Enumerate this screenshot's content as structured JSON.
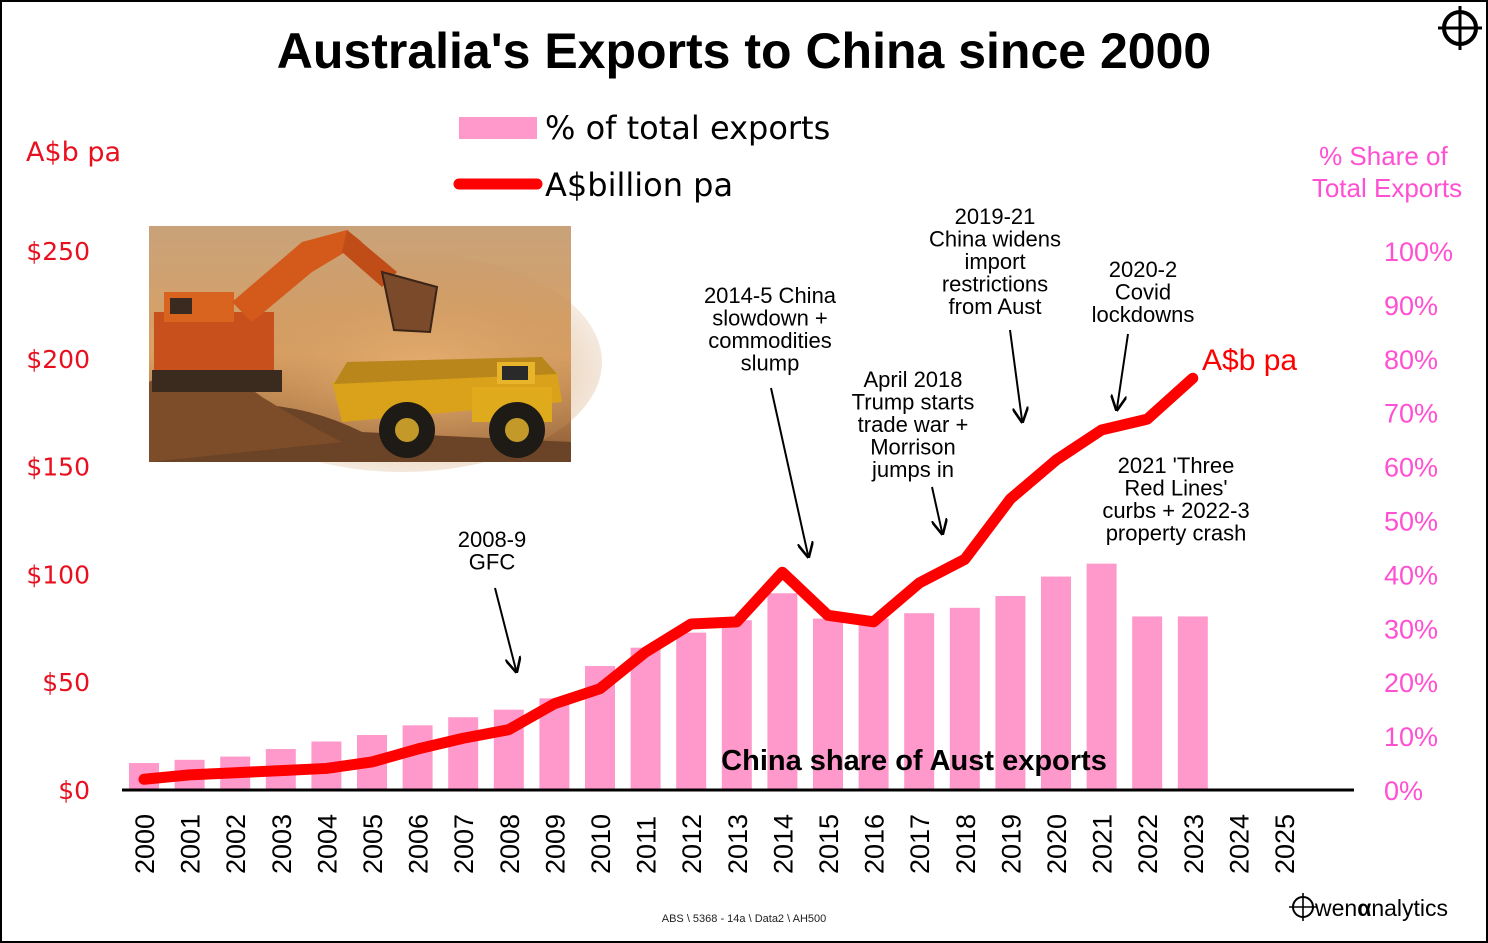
{
  "chart_data": {
    "type": "bar+line",
    "title": "Australia's Exports to China since 2000",
    "categories": [
      "2000",
      "2001",
      "2002",
      "2003",
      "2004",
      "2005",
      "2006",
      "2007",
      "2008",
      "2009",
      "2010",
      "2011",
      "2012",
      "2013",
      "2014",
      "2015",
      "2016",
      "2017",
      "2018",
      "2019",
      "2020",
      "2021",
      "2022",
      "2023",
      "2024",
      "2025"
    ],
    "series": [
      {
        "name": "% of total exports",
        "type": "bar",
        "axis": "right",
        "color": "#ff99cc",
        "values": [
          5.0,
          5.6,
          6.2,
          7.6,
          9.0,
          10.2,
          12.0,
          13.5,
          14.9,
          17.0,
          23.0,
          26.4,
          29.2,
          31.5,
          36.5,
          31.8,
          31.8,
          32.8,
          33.8,
          36.0,
          39.6,
          42.0,
          32.2,
          32.2,
          null,
          null
        ]
      },
      {
        "name": "A$billion pa",
        "type": "line",
        "axis": "left",
        "color": "#ff0000",
        "values": [
          5,
          7,
          8,
          9,
          10,
          13,
          19,
          24,
          28,
          40,
          47,
          64,
          77,
          78,
          101,
          81,
          78,
          96,
          107,
          135,
          153,
          167,
          172,
          191,
          null,
          null
        ]
      }
    ],
    "ylabel_left": "A$b pa",
    "ylabel_right": "% Share of Total Exports",
    "ylim_left": [
      0,
      250
    ],
    "ylim_right": [
      0,
      100
    ],
    "yticks_left": [
      "$0",
      "$50",
      "$100",
      "$150",
      "$200",
      "$250"
    ],
    "yticks_right": [
      "0%",
      "10%",
      "20%",
      "30%",
      "40%",
      "50%",
      "60%",
      "70%",
      "80%",
      "90%",
      "100%"
    ],
    "legend": [
      "% of total exports",
      "A$billion pa"
    ],
    "line_end_label": "A$b pa",
    "bar_label": "China share of Aust exports",
    "annotations": [
      {
        "lines": [
          "2008-9",
          "GFC"
        ],
        "x": "2008"
      },
      {
        "lines": [
          "2014-5 China",
          "slowdown +",
          "commodities",
          "slump"
        ],
        "x": "2014"
      },
      {
        "lines": [
          "April 2018",
          "Trump starts",
          "trade war +",
          "Morrison",
          "jumps in"
        ],
        "x": "2017"
      },
      {
        "lines": [
          "2019-21",
          "China widens",
          "import",
          "restrictions",
          "from Aust"
        ],
        "x": "2019"
      },
      {
        "lines": [
          "2020-2",
          "Covid",
          "lockdowns"
        ],
        "x": "2021"
      },
      {
        "lines": [
          "2021 'Three",
          "Red Lines'",
          "curbs + 2022-3",
          "property crash"
        ],
        "x": "2022"
      }
    ],
    "grid": false
  },
  "colors": {
    "left_axis": "#e8101f",
    "right_axis": "#ff4fd2",
    "bars": "#ff99cc",
    "line": "#ff0000"
  },
  "source": "ABS \\ 5368 - 14a   \\ Data2 \\ AH500",
  "logo": {
    "brand_w": "wen",
    "brand_a": "α",
    "brand_rest": "nalytics"
  },
  "icons": {
    "corner": "crosshair-icon",
    "logo": "crosshair-o-icon"
  }
}
